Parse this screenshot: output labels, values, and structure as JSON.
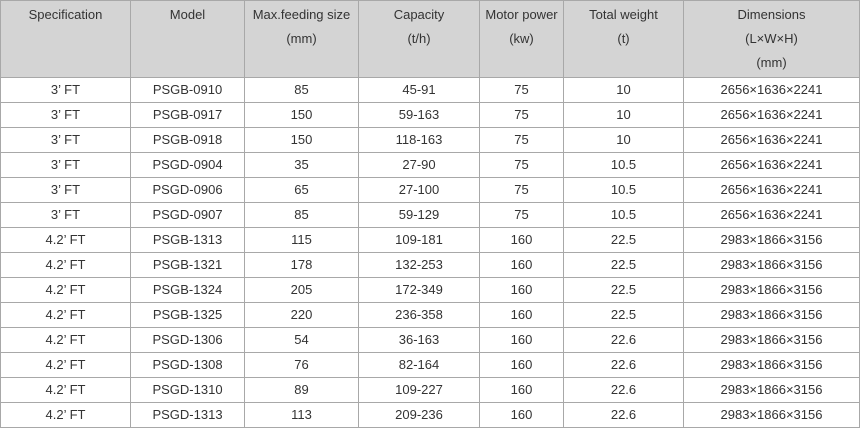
{
  "table": {
    "header": [
      [
        "Specification"
      ],
      [
        "Model"
      ],
      [
        "Max.feeding size",
        "(mm)"
      ],
      [
        "Capacity",
        "(t/h)"
      ],
      [
        "Motor power",
        "(kw)"
      ],
      [
        "Total weight",
        "(t)"
      ],
      [
        "Dimensions",
        "(L×W×H)",
        "(mm)"
      ]
    ],
    "rows": [
      [
        "3’ FT",
        "PSGB-0910",
        "85",
        "45-91",
        "75",
        "10",
        "2656×1636×2241"
      ],
      [
        "3’ FT",
        "PSGB-0917",
        "150",
        "59-163",
        "75",
        "10",
        "2656×1636×2241"
      ],
      [
        "3’ FT",
        "PSGB-0918",
        "150",
        "118-163",
        "75",
        "10",
        "2656×1636×2241"
      ],
      [
        "3’ FT",
        "PSGD-0904",
        "35",
        "27-90",
        "75",
        "10.5",
        "2656×1636×2241"
      ],
      [
        "3’ FT",
        "PSGD-0906",
        "65",
        "27-100",
        "75",
        "10.5",
        "2656×1636×2241"
      ],
      [
        "3’ FT",
        "PSGD-0907",
        "85",
        "59-129",
        "75",
        "10.5",
        "2656×1636×2241"
      ],
      [
        "4.2’ FT",
        "PSGB-1313",
        "115",
        "109-181",
        "160",
        "22.5",
        "2983×1866×3156"
      ],
      [
        "4.2’ FT",
        "PSGB-1321",
        "178",
        "132-253",
        "160",
        "22.5",
        "2983×1866×3156"
      ],
      [
        "4.2’ FT",
        "PSGB-1324",
        "205",
        "172-349",
        "160",
        "22.5",
        "2983×1866×3156"
      ],
      [
        "4.2’ FT",
        "PSGB-1325",
        "220",
        "236-358",
        "160",
        "22.5",
        "2983×1866×3156"
      ],
      [
        "4.2’ FT",
        "PSGD-1306",
        "54",
        "36-163",
        "160",
        "22.6",
        "2983×1866×3156"
      ],
      [
        "4.2’ FT",
        "PSGD-1308",
        "76",
        "82-164",
        "160",
        "22.6",
        "2983×1866×3156"
      ],
      [
        "4.2’ FT",
        "PSGD-1310",
        "89",
        "109-227",
        "160",
        "22.6",
        "2983×1866×3156"
      ],
      [
        "4.2’ FT",
        "PSGD-1313",
        "113",
        "209-236",
        "160",
        "22.6",
        "2983×1866×3156"
      ]
    ]
  }
}
